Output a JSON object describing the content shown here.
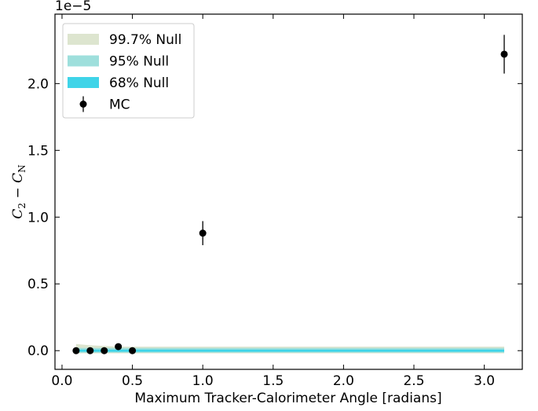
{
  "chart_data": {
    "type": "errorbar_band",
    "xlabel": "Maximum Tracker-Calorimeter Angle [radians]",
    "ylabel_parts": [
      "C",
      "2",
      " − C",
      "N"
    ],
    "offset_text": "1e−5",
    "xlim": [
      -0.05,
      3.27
    ],
    "ylim": [
      -0.14,
      2.52
    ],
    "xticks": [
      {
        "value": 0,
        "label": "0.0"
      },
      {
        "value": 0.5,
        "label": "0.5"
      },
      {
        "value": 1,
        "label": "1.0"
      },
      {
        "value": 1.5,
        "label": "1.5"
      },
      {
        "value": 2,
        "label": "2.0"
      },
      {
        "value": 2.5,
        "label": "2.5"
      },
      {
        "value": 3,
        "label": "3.0"
      }
    ],
    "yticks": [
      {
        "value": 0,
        "label": "0.0"
      },
      {
        "value": 0.5,
        "label": "0.5"
      },
      {
        "value": 1,
        "label": "1.0"
      },
      {
        "value": 1.5,
        "label": "1.5"
      },
      {
        "value": 2,
        "label": "2.0"
      }
    ],
    "legend": "upper left",
    "bands": [
      {
        "name": "99.7% Null",
        "color": "#dde5cf",
        "x": [
          0.1,
          0.2,
          0.3,
          0.4,
          0.5,
          1.0,
          3.1416
        ],
        "lower": [
          -0.02,
          -0.02,
          -0.02,
          -0.02,
          -0.02,
          -0.02,
          -0.02
        ],
        "upper": [
          0.05,
          0.04,
          0.035,
          0.03,
          0.03,
          0.03,
          0.03
        ]
      },
      {
        "name": "95% Null",
        "color": "#9edfdc",
        "x": [
          0.1,
          0.2,
          0.3,
          0.4,
          0.5,
          1.0,
          3.1416
        ],
        "lower": [
          -0.015,
          -0.015,
          -0.015,
          -0.015,
          -0.015,
          -0.015,
          -0.015
        ],
        "upper": [
          0.02,
          0.02,
          0.02,
          0.02,
          0.02,
          0.02,
          0.02
        ]
      },
      {
        "name": "68% Null",
        "color": "#3fd4e8",
        "x": [
          0.1,
          0.2,
          0.3,
          0.4,
          0.5,
          1.0,
          3.1416
        ],
        "lower": [
          -0.008,
          -0.008,
          -0.008,
          -0.008,
          -0.008,
          -0.008,
          -0.008
        ],
        "upper": [
          0.008,
          0.008,
          0.008,
          0.008,
          0.008,
          0.008,
          0.008
        ]
      }
    ],
    "series": [
      {
        "name": "MC",
        "color": "#000000",
        "x": [
          0.1,
          0.2,
          0.3,
          0.4,
          0.5,
          1.0,
          3.1416
        ],
        "values": [
          0.0,
          0.0,
          0.0,
          0.03,
          0.0,
          0.88,
          2.22
        ],
        "errors": [
          0.005,
          0.005,
          0.005,
          0.01,
          0.005,
          0.09,
          0.145
        ]
      }
    ]
  }
}
